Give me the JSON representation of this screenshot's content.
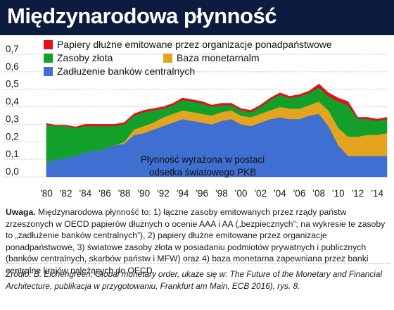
{
  "header": {
    "title": "Międzynarodowa płynność"
  },
  "chart_data": {
    "type": "area",
    "stacked": true,
    "annotation": "Płynność wyrażona w postaci odsetka światowego PKB",
    "annotation_lines": [
      "Płynność wyrażona w postaci",
      "odsetka światowego PKB"
    ],
    "ylim": [
      0,
      0.7
    ],
    "y_ticks": [
      "0,0",
      "0,1",
      "0,2",
      "0,3",
      "0,4",
      "0,5",
      "0,6",
      "0,7"
    ],
    "x_ticks": [
      "'80",
      "'82",
      "'84",
      "'86",
      "'88",
      "'90",
      "'92",
      "'94",
      "'96",
      "'98",
      "'00",
      "'02",
      "'04",
      "'06",
      "'08",
      "'10",
      "'12",
      "'14"
    ],
    "x": [
      1980,
      1981,
      1982,
      1983,
      1984,
      1985,
      1986,
      1987,
      1988,
      1989,
      1990,
      1991,
      1992,
      1993,
      1994,
      1995,
      1996,
      1997,
      1998,
      1999,
      2000,
      2001,
      2002,
      2003,
      2004,
      2005,
      2006,
      2007,
      2008,
      2009,
      2010,
      2011,
      2012,
      2013,
      2014,
      2015
    ],
    "legend": {
      "placement": "top-left"
    },
    "series": [
      {
        "name": "Zadłużenie banków centralnych",
        "color": "#3f6fd0",
        "values": [
          0.08,
          0.1,
          0.11,
          0.12,
          0.14,
          0.15,
          0.16,
          0.18,
          0.19,
          0.24,
          0.25,
          0.27,
          0.29,
          0.31,
          0.33,
          0.32,
          0.31,
          0.3,
          0.32,
          0.33,
          0.3,
          0.29,
          0.31,
          0.33,
          0.34,
          0.33,
          0.33,
          0.35,
          0.36,
          0.29,
          0.18,
          0.12,
          0.12,
          0.12,
          0.12,
          0.12
        ]
      },
      {
        "name": "Baza monetarnalm",
        "color": "#e3a520",
        "values": [
          0.0,
          0.0,
          0.0,
          0.0,
          0.0,
          0.0,
          0.0,
          0.0,
          0.01,
          0.03,
          0.04,
          0.04,
          0.05,
          0.05,
          0.05,
          0.05,
          0.05,
          0.05,
          0.05,
          0.05,
          0.05,
          0.05,
          0.05,
          0.05,
          0.06,
          0.06,
          0.06,
          0.06,
          0.07,
          0.09,
          0.1,
          0.11,
          0.11,
          0.12,
          0.12,
          0.13
        ]
      },
      {
        "name": "Zasoby złota",
        "color": "#12a02a",
        "values": [
          0.22,
          0.19,
          0.18,
          0.16,
          0.15,
          0.14,
          0.13,
          0.11,
          0.1,
          0.08,
          0.08,
          0.07,
          0.05,
          0.05,
          0.06,
          0.06,
          0.06,
          0.05,
          0.04,
          0.03,
          0.03,
          0.03,
          0.04,
          0.06,
          0.07,
          0.06,
          0.07,
          0.07,
          0.08,
          0.08,
          0.15,
          0.18,
          0.1,
          0.09,
          0.08,
          0.08
        ]
      },
      {
        "name": "Papiery dłużne emitowane przez organizacje ponadpaństwowe",
        "color": "#e3101a",
        "values": [
          0.005,
          0.005,
          0.005,
          0.005,
          0.01,
          0.01,
          0.01,
          0.01,
          0.01,
          0.01,
          0.01,
          0.01,
          0.01,
          0.01,
          0.01,
          0.01,
          0.01,
          0.01,
          0.01,
          0.01,
          0.01,
          0.01,
          0.01,
          0.01,
          0.01,
          0.01,
          0.01,
          0.01,
          0.02,
          0.02,
          0.02,
          0.02,
          0.01,
          0.01,
          0.01,
          0.01
        ]
      }
    ]
  },
  "notes": {
    "label": "Uwaga.",
    "text": " Międzynarodowa płynność to: 1) łączne zasoby emitowanych przez rządy państw zrzeszonych w OECD papierów dłużnych o ocenie AAA i AA („bezpiecznych”; na wykresie te zasoby to „zadłużenie banków centralnych”), 2) papiery dłużne emitowane przez organizacje ponadpaństwowe, 3) światowe zasoby złota w posiadaniu podmiotów prywatnych i publicznych (banków centralnych, skarbów państw i MFW) oraz 4) baza monetarna zapewniana przez banki centralne krajów należących do OECD."
  },
  "source": {
    "text": "Źródło: B. Eichengreen, Global monetary order, ukaże się w: The Future of the Monetary and Financial Architecture, publikacja w przygotowaniu, Frankfurt am Main, ECB 2016), rys. 8."
  }
}
